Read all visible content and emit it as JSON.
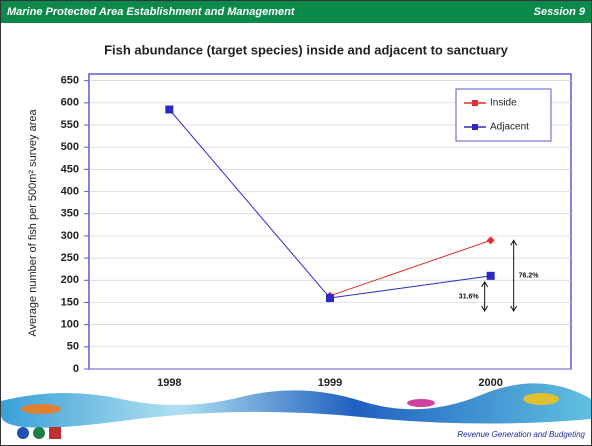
{
  "header": {
    "title": "Marine Protected Area Establishment and Management",
    "session": "Session 9"
  },
  "footer": {
    "text": "Revenue Generation and Budgeting"
  },
  "chart_data": {
    "type": "line",
    "title": "Fish abundance (target species) inside and adjacent to sanctuary",
    "y_label": "Average number of fish per 500m² survey area",
    "categories": [
      "1998",
      "1999",
      "2000"
    ],
    "series": [
      {
        "name": "Inside",
        "color": "#e03030",
        "values": [
          null,
          165,
          290
        ]
      },
      {
        "name": "Adjacent",
        "color": "#2a2ac0",
        "values": [
          585,
          160,
          210
        ]
      }
    ],
    "ylim": [
      0,
      665
    ],
    "yticks": [
      0,
      50,
      100,
      150,
      200,
      250,
      300,
      350,
      400,
      450,
      500,
      550,
      600,
      650
    ],
    "grid": true,
    "legend": "upper right",
    "annotations": [
      "76.2%",
      "31.6%"
    ]
  }
}
